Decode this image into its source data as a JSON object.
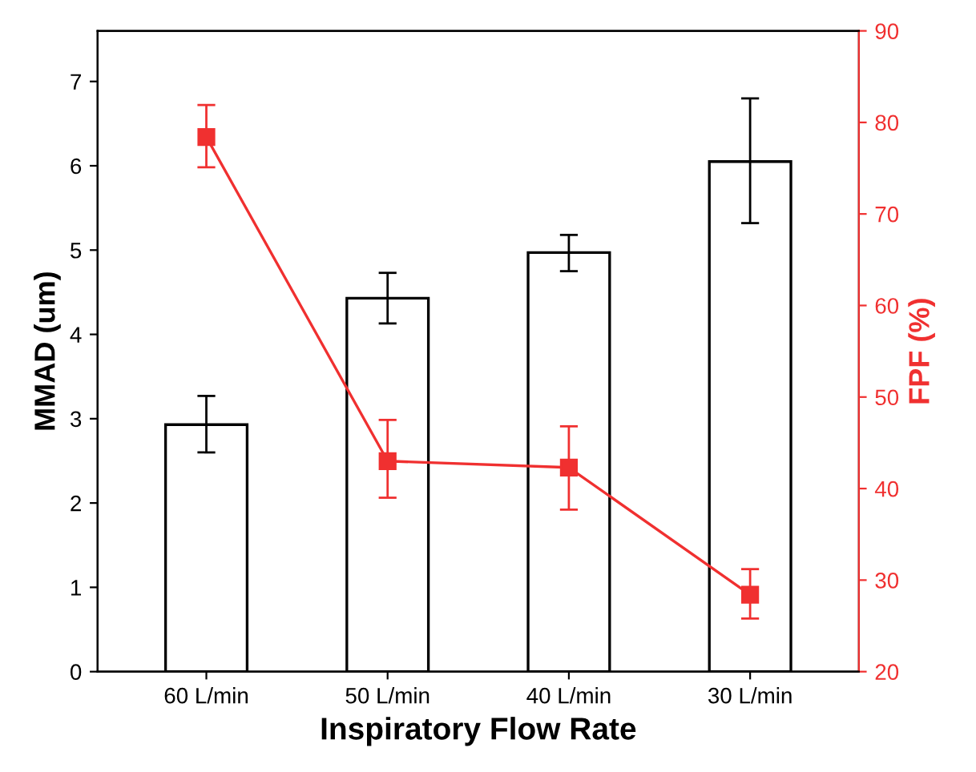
{
  "chart_data": {
    "type": "bar",
    "xlabel": "Inspiratory Flow Rate",
    "ylabel": "MMAD (um)",
    "y2label": "FPF (%)",
    "categories": [
      "60 L/min",
      "50 L/min",
      "40 L/min",
      "30 L/min"
    ],
    "ylim": [
      0,
      7.6
    ],
    "yticks": [
      0,
      1,
      2,
      3,
      4,
      5,
      6,
      7
    ],
    "y2lim": [
      20,
      90
    ],
    "y2ticks": [
      20,
      30,
      40,
      50,
      60,
      70,
      80,
      90
    ],
    "grid": false,
    "legend": false,
    "series": [
      {
        "color": "#ffffff",
        "values": [
          2.93,
          4.43,
          4.97,
          6.05
        ],
        "errors": [
          [
            2.6,
            3.27
          ],
          [
            4.13,
            4.73
          ],
          [
            4.75,
            5.18
          ],
          [
            5.32,
            6.8
          ]
        ]
      },
      {
        "type": "line",
        "axis": "y2",
        "color": "#f03030",
        "marker": "square",
        "line_style": "solid",
        "values": [
          78.4,
          43.0,
          42.3,
          28.4
        ],
        "errors": [
          [
            75.1,
            81.9
          ],
          [
            39.0,
            47.5
          ],
          [
            37.7,
            46.8
          ],
          [
            25.8,
            31.2
          ]
        ]
      }
    ]
  }
}
